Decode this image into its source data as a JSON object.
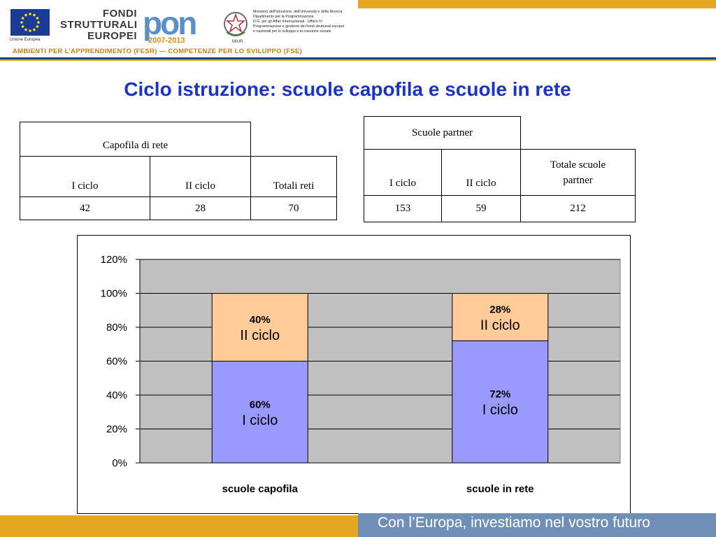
{
  "header": {
    "eu_label": "Unione Europea",
    "fondi_lines": [
      "FONDI",
      "STRUTTURALI",
      "EUROPEI"
    ],
    "pon_text": "pon",
    "pon_years": "2007-2013",
    "miur_label": "MIUR",
    "ministero_lines": [
      "Ministero dell'Istruzione, dell'Università e della Ricerca",
      "Dipartimento per la Programmazione",
      "D.G. per gli Affari Internazionali - Ufficio IV",
      "Programmazione e gestione dei fondi strutturali europei",
      "e nazionali per lo sviluppo e la coesione sociale"
    ],
    "tagline": "AMBIENTI PER L’APPRENDIMENTO (FESR)   —   COMPETENZE PER LO SVILUPPO (FSE)"
  },
  "title": "Ciclo istruzione: scuole capofila e scuole in rete",
  "table_capofila": {
    "group_header": "Capofila di rete",
    "col_i": "I ciclo",
    "col_ii": "II ciclo",
    "col_tot": "Totali reti",
    "val_i": "42",
    "val_ii": "28",
    "val_tot": "70"
  },
  "table_partner": {
    "group_header": "Scuole partner",
    "col_i": "I ciclo",
    "col_ii": "II ciclo",
    "col_tot_line1": "Totale scuole",
    "col_tot_line2": "partner",
    "val_i": "153",
    "val_ii": "59",
    "val_tot": "212"
  },
  "chart_data": {
    "type": "bar",
    "stacked": true,
    "categories": [
      "scuole capofila",
      "scuole in rete"
    ],
    "series": [
      {
        "name": "I ciclo",
        "values": [
          60,
          72
        ],
        "labels": [
          "60%",
          "72%"
        ],
        "color": "#9999ff"
      },
      {
        "name": "II ciclo",
        "values": [
          40,
          28
        ],
        "labels": [
          "40%",
          "28%"
        ],
        "color": "#ffcc99"
      }
    ],
    "ylim": [
      0,
      120
    ],
    "yticks": [
      0,
      20,
      40,
      60,
      80,
      100,
      120
    ],
    "ytick_labels": [
      "0%",
      "20%",
      "40%",
      "60%",
      "80%",
      "100%",
      "120%"
    ],
    "plot_background": "#c0c0c0",
    "grid": true
  },
  "footer": {
    "text": "Con l’Europa, investiamo nel vostro futuro"
  }
}
